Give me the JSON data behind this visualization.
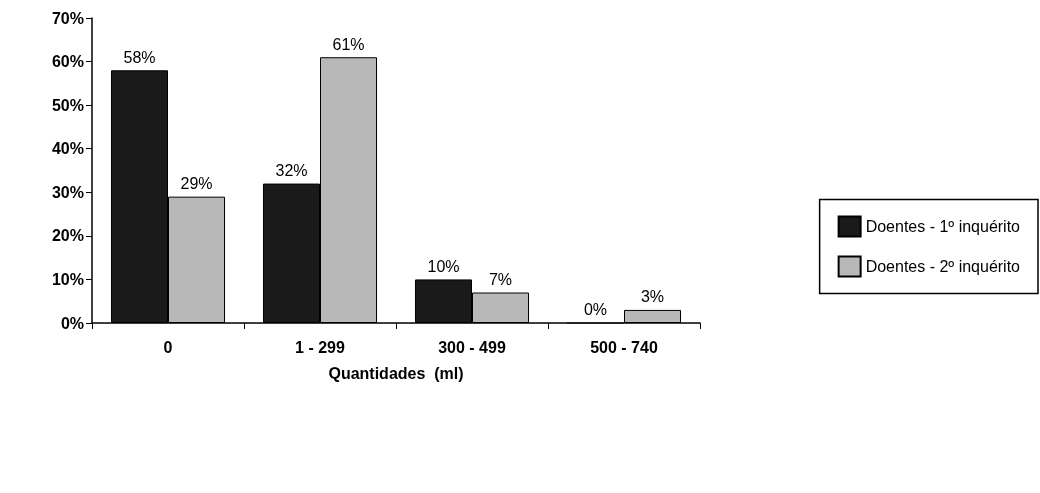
{
  "chart_data": {
    "type": "bar",
    "xlabel": "Quantidades  (ml)",
    "categories": [
      "0",
      "1 - 299",
      "300 - 499",
      "500 - 740"
    ],
    "series": [
      {
        "name": "Doentes - 1º inquérito",
        "color": "#1a1a1a",
        "values": [
          58,
          32,
          10,
          0
        ],
        "value_labels": [
          "58%",
          "32%",
          "10%",
          "0%"
        ]
      },
      {
        "name": "Doentes - 2º inquérito",
        "color": "#b8b8b8",
        "values": [
          29,
          61,
          7,
          3
        ],
        "value_labels": [
          "29%",
          "61%",
          "7%",
          "3%"
        ]
      }
    ],
    "ylim": [
      0,
      70
    ],
    "yticks": [
      {
        "value": 0,
        "label": "0%"
      },
      {
        "value": 10,
        "label": "10%"
      },
      {
        "value": 20,
        "label": "20%"
      },
      {
        "value": 30,
        "label": "30%"
      },
      {
        "value": 40,
        "label": "40%"
      },
      {
        "value": 50,
        "label": "50%"
      },
      {
        "value": 60,
        "label": "60%"
      },
      {
        "value": 70,
        "label": "70%"
      }
    ],
    "grid": false,
    "legend": "right"
  }
}
